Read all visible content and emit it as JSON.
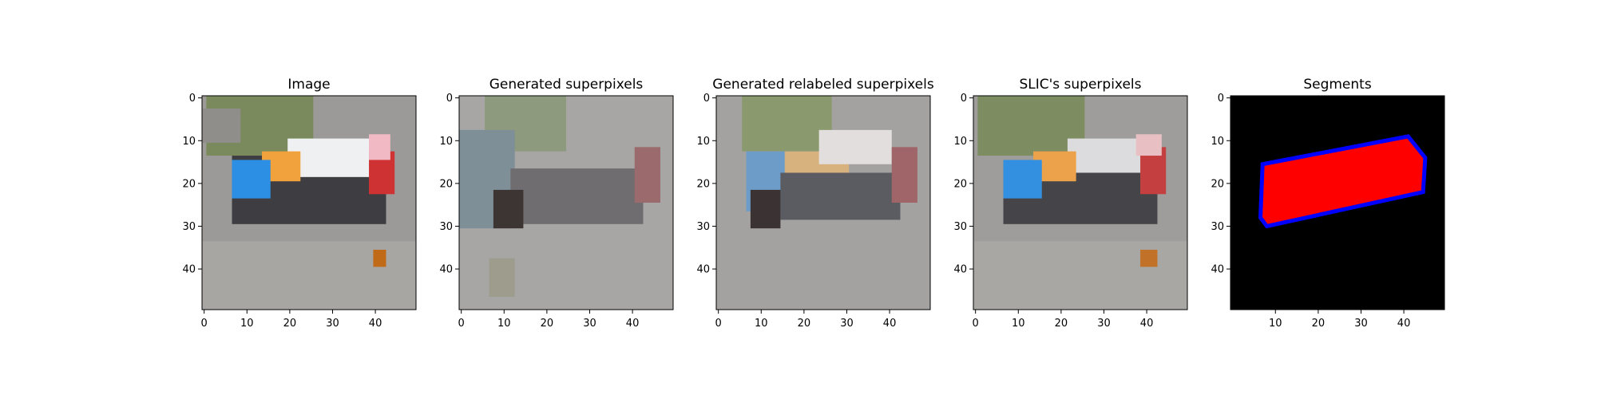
{
  "chart_data": [
    {
      "type": "heatmap",
      "id": "image",
      "title": "Image",
      "xticks": [
        0,
        10,
        20,
        30,
        40
      ],
      "yticks": [
        0,
        10,
        20,
        30,
        40
      ],
      "xlim": [
        -0.5,
        49.5
      ],
      "ylim": [
        49.5,
        -0.5
      ],
      "background": "#9b9a98",
      "regions": [
        {
          "name": "grass",
          "x": [
            1,
            25
          ],
          "y": [
            0,
            13
          ],
          "color": "#7b8a5c"
        },
        {
          "name": "road-shadow",
          "x": [
            0,
            8
          ],
          "y": [
            3,
            10
          ],
          "color": "#8f8e8a"
        },
        {
          "name": "truck-dark-body",
          "x": [
            7,
            42
          ],
          "y": [
            14,
            29
          ],
          "color": "#3d3d42"
        },
        {
          "name": "truck-white-roof",
          "x": [
            20,
            39
          ],
          "y": [
            10,
            18
          ],
          "color": "#eef0f2"
        },
        {
          "name": "truck-orange-cab",
          "x": [
            14,
            22
          ],
          "y": [
            13,
            19
          ],
          "color": "#f1a23c"
        },
        {
          "name": "truck-blue-front",
          "x": [
            7,
            15
          ],
          "y": [
            15,
            23
          ],
          "color": "#2c8fe3"
        },
        {
          "name": "truck-red-back",
          "x": [
            39,
            44
          ],
          "y": [
            13,
            22
          ],
          "color": "#cf3232"
        },
        {
          "name": "truck-pink-top",
          "x": [
            39,
            43
          ],
          "y": [
            9,
            14
          ],
          "color": "#f0b9c4"
        },
        {
          "name": "sidewalk",
          "x": [
            0,
            49
          ],
          "y": [
            34,
            49
          ],
          "color": "#a8a6a3"
        },
        {
          "name": "cone",
          "x": [
            40,
            42
          ],
          "y": [
            36,
            39
          ],
          "color": "#c06a18"
        }
      ]
    },
    {
      "type": "heatmap",
      "id": "generated-superpixels",
      "title": "Generated superpixels",
      "xticks": [
        0,
        10,
        20,
        30,
        40
      ],
      "yticks": [
        0,
        10,
        20,
        30,
        40
      ],
      "xlim": [
        -0.5,
        49.5
      ],
      "ylim": [
        49.5,
        -0.5
      ],
      "background": "#a8a6a4",
      "regions": [
        {
          "name": "grass",
          "x": [
            6,
            24
          ],
          "y": [
            0,
            12
          ],
          "color": "#8e9a7d"
        },
        {
          "name": "left-blue",
          "x": [
            0,
            12
          ],
          "y": [
            8,
            30
          ],
          "color": "#7e8f98"
        },
        {
          "name": "body",
          "x": [
            12,
            42
          ],
          "y": [
            17,
            29
          ],
          "color": "#6f6d70"
        },
        {
          "name": "dark-center",
          "x": [
            8,
            14
          ],
          "y": [
            22,
            30
          ],
          "color": "#3d3434"
        },
        {
          "name": "red-back",
          "x": [
            41,
            46
          ],
          "y": [
            12,
            24
          ],
          "color": "#9a6a6c"
        },
        {
          "name": "lower-blob",
          "x": [
            7,
            12
          ],
          "y": [
            38,
            46
          ],
          "color": "#9e9c8c"
        }
      ]
    },
    {
      "type": "heatmap",
      "id": "generated-relabeled-superpixels",
      "title": "Generated relabeled superpixels",
      "xticks": [
        0,
        10,
        20,
        30,
        40
      ],
      "yticks": [
        0,
        10,
        20,
        30,
        40
      ],
      "xlim": [
        -0.5,
        49.5
      ],
      "ylim": [
        49.5,
        -0.5
      ],
      "background": "#a4a2a0",
      "regions": [
        {
          "name": "grass",
          "x": [
            6,
            26
          ],
          "y": [
            0,
            12
          ],
          "color": "#8a9a6e"
        },
        {
          "name": "blue-front",
          "x": [
            7,
            16
          ],
          "y": [
            13,
            26
          ],
          "color": "#6d9cc9"
        },
        {
          "name": "orange-strip",
          "x": [
            16,
            30
          ],
          "y": [
            13,
            18
          ],
          "color": "#d7b27f"
        },
        {
          "name": "white-top",
          "x": [
            24,
            40
          ],
          "y": [
            8,
            15
          ],
          "color": "#e3dede"
        },
        {
          "name": "body",
          "x": [
            15,
            42
          ],
          "y": [
            18,
            28
          ],
          "color": "#5b5b62"
        },
        {
          "name": "dark-center",
          "x": [
            8,
            14
          ],
          "y": [
            22,
            30
          ],
          "color": "#3a3233"
        },
        {
          "name": "red-back",
          "x": [
            41,
            46
          ],
          "y": [
            12,
            24
          ],
          "color": "#a06568"
        }
      ]
    },
    {
      "type": "heatmap",
      "id": "slic-superpixels",
      "title": "SLIC's superpixels",
      "xticks": [
        0,
        10,
        20,
        30,
        40
      ],
      "yticks": [
        0,
        10,
        20,
        30,
        40
      ],
      "xlim": [
        -0.5,
        49.5
      ],
      "ylim": [
        49.5,
        -0.5
      ],
      "background": "#9e9d9b",
      "regions": [
        {
          "name": "grass",
          "x": [
            1,
            25
          ],
          "y": [
            0,
            13
          ],
          "color": "#7e8c62"
        },
        {
          "name": "truck-dark-body",
          "x": [
            7,
            42
          ],
          "y": [
            16,
            29
          ],
          "color": "#454549"
        },
        {
          "name": "truck-white-roof",
          "x": [
            22,
            40
          ],
          "y": [
            10,
            17
          ],
          "color": "#dcdcde"
        },
        {
          "name": "truck-orange-cab",
          "x": [
            14,
            23
          ],
          "y": [
            13,
            19
          ],
          "color": "#eca24a"
        },
        {
          "name": "truck-blue-front",
          "x": [
            7,
            15
          ],
          "y": [
            15,
            23
          ],
          "color": "#3390e0"
        },
        {
          "name": "truck-red-back",
          "x": [
            39,
            44
          ],
          "y": [
            12,
            22
          ],
          "color": "#c44040"
        },
        {
          "name": "truck-pink-top",
          "x": [
            38,
            43
          ],
          "y": [
            9,
            13
          ],
          "color": "#e8c0c4"
        },
        {
          "name": "sidewalk",
          "x": [
            0,
            49
          ],
          "y": [
            34,
            49
          ],
          "color": "#a9a7a3"
        },
        {
          "name": "cone",
          "x": [
            39,
            42
          ],
          "y": [
            36,
            39
          ],
          "color": "#c27228"
        }
      ]
    },
    {
      "type": "heatmap",
      "id": "segments",
      "title": "Segments",
      "xticks": [
        10,
        20,
        30,
        40
      ],
      "yticks": [
        0,
        10,
        20,
        30,
        40
      ],
      "xlim": [
        -0.5,
        49.5
      ],
      "ylim": [
        49.5,
        -0.5
      ],
      "background": "#000000",
      "segment_color": "#ff0000",
      "boundary_color": "#0000ff",
      "segment_polygon": [
        [
          7,
          15.5
        ],
        [
          41,
          9
        ],
        [
          45,
          14
        ],
        [
          44.5,
          22
        ],
        [
          8,
          30
        ],
        [
          6.5,
          28
        ]
      ]
    }
  ]
}
